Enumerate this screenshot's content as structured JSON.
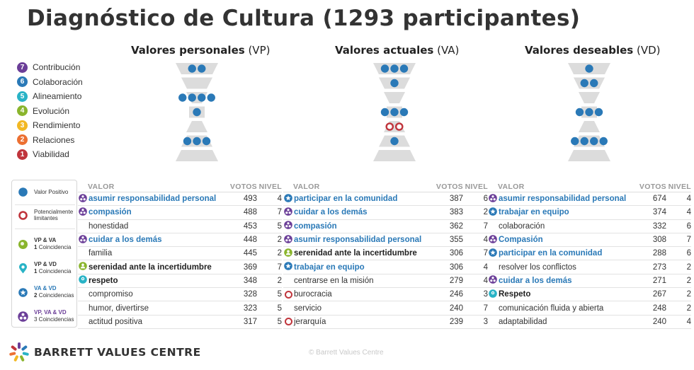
{
  "title": "Diagnóstico de Cultura (1293 participantes)",
  "hourglass_titles": [
    {
      "bold": "Valores personales",
      "abbr": "(VP)"
    },
    {
      "bold": "Valores actuales",
      "abbr": "(VA)"
    },
    {
      "bold": "Valores deseables",
      "abbr": "(VD)"
    }
  ],
  "levels": [
    {
      "num": "7",
      "label": "Contribución",
      "color": "#6b3e98"
    },
    {
      "num": "6",
      "label": "Colaboración",
      "color": "#2a79b7"
    },
    {
      "num": "5",
      "label": "Alineamiento",
      "color": "#29b3c6"
    },
    {
      "num": "4",
      "label": "Evolución",
      "color": "#8ab52d"
    },
    {
      "num": "3",
      "label": "Rendimiento",
      "color": "#f2b824"
    },
    {
      "num": "2",
      "label": "Relaciones",
      "color": "#ec7032"
    },
    {
      "num": "1",
      "label": "Viabilidad",
      "color": "#c0353c"
    }
  ],
  "key": {
    "positive": "Valor Positivo",
    "limiting": "Potencialmente limitantes",
    "vpva_title": "VP & VA",
    "vpva_sub_num": "1",
    "vpva_sub": "Coincidencia",
    "vpvd_title": "VP & VD",
    "vpvd_sub_num": "1",
    "vpvd_sub": "Coincidencia",
    "vavd_title": "VA & VD",
    "vavd_sub_num": "2",
    "vavd_sub": "Coincidencias",
    "all_title": "VP, VA & VD",
    "all_sub": "3 Coincidencias"
  },
  "table_headers": {
    "valor": "VALOR",
    "votos": "VOTOS",
    "nivel": "NIVEL"
  },
  "chart_data": {
    "type": "table",
    "hourglass": {
      "VP": {
        "7": {
          "pos": 2,
          "lim": 0
        },
        "6": {
          "pos": 0,
          "lim": 0
        },
        "5": {
          "pos": 4,
          "lim": 0
        },
        "4": {
          "pos": 1,
          "lim": 0
        },
        "3": {
          "pos": 0,
          "lim": 0
        },
        "2": {
          "pos": 3,
          "lim": 0
        },
        "1": {
          "pos": 0,
          "lim": 0
        }
      },
      "VA": {
        "7": {
          "pos": 3,
          "lim": 0
        },
        "6": {
          "pos": 1,
          "lim": 0
        },
        "5": {
          "pos": 0,
          "lim": 0
        },
        "4": {
          "pos": 3,
          "lim": 0
        },
        "3": {
          "pos": 0,
          "lim": 2
        },
        "2": {
          "pos": 1,
          "lim": 0
        },
        "1": {
          "pos": 0,
          "lim": 0
        }
      },
      "VD": {
        "7": {
          "pos": 1,
          "lim": 0
        },
        "6": {
          "pos": 2,
          "lim": 0
        },
        "5": {
          "pos": 0,
          "lim": 0
        },
        "4": {
          "pos": 3,
          "lim": 0
        },
        "3": {
          "pos": 0,
          "lim": 0
        },
        "2": {
          "pos": 4,
          "lim": 0
        },
        "1": {
          "pos": 0,
          "lim": 0
        }
      }
    },
    "tables": [
      {
        "id": "VP",
        "rows": [
          {
            "name": "asumir responsabilidad personal",
            "votes": "493",
            "level": "4",
            "match": "vpvava",
            "style": "blue"
          },
          {
            "name": "compasión",
            "votes": "488",
            "level": "7",
            "match": "vpvava",
            "style": "blue"
          },
          {
            "name": "honestidad",
            "votes": "453",
            "level": "5",
            "match": "",
            "style": "plain"
          },
          {
            "name": "cuidar a los demás",
            "votes": "448",
            "level": "2",
            "match": "vpvava",
            "style": "blue"
          },
          {
            "name": "familia",
            "votes": "445",
            "level": "2",
            "match": "",
            "style": "plain"
          },
          {
            "name": "serenidad ante la incertidumbre",
            "votes": "369",
            "level": "7",
            "match": "vpva",
            "style": "bold"
          },
          {
            "name": "respeto",
            "votes": "348",
            "level": "2",
            "match": "vpvd",
            "style": "bold"
          },
          {
            "name": "compromiso",
            "votes": "328",
            "level": "5",
            "match": "",
            "style": "plain"
          },
          {
            "name": "humor, divertirse",
            "votes": "323",
            "level": "5",
            "match": "",
            "style": "plain"
          },
          {
            "name": "actitud positiva",
            "votes": "317",
            "level": "5",
            "match": "",
            "style": "plain"
          }
        ]
      },
      {
        "id": "VA",
        "rows": [
          {
            "name": "participar en la comunidad",
            "votes": "387",
            "level": "6",
            "match": "vava",
            "style": "blue"
          },
          {
            "name": "cuidar a los demás",
            "votes": "383",
            "level": "2",
            "match": "vpvava",
            "style": "blue"
          },
          {
            "name": "compasión",
            "votes": "362",
            "level": "7",
            "match": "vpvava",
            "style": "blue"
          },
          {
            "name": "asumir responsabilidad personal",
            "votes": "355",
            "level": "4",
            "match": "vpvava",
            "style": "blue"
          },
          {
            "name": "serenidad ante la incertidumbre",
            "votes": "306",
            "level": "7",
            "match": "vpva",
            "style": "bold"
          },
          {
            "name": "trabajar en equipo",
            "votes": "306",
            "level": "4",
            "match": "vava",
            "style": "blue"
          },
          {
            "name": "centrarse en la misión",
            "votes": "279",
            "level": "4",
            "match": "",
            "style": "plain"
          },
          {
            "name": "burocracia",
            "votes": "246",
            "level": "3",
            "match": "lim",
            "style": "plain"
          },
          {
            "name": "servicio",
            "votes": "240",
            "level": "7",
            "match": "",
            "style": "plain"
          },
          {
            "name": "jerarquía",
            "votes": "239",
            "level": "3",
            "match": "lim",
            "style": "plain"
          }
        ]
      },
      {
        "id": "VD",
        "rows": [
          {
            "name": "asumir responsabilidad personal",
            "votes": "674",
            "level": "4",
            "match": "vpvava",
            "style": "blue"
          },
          {
            "name": "trabajar en equipo",
            "votes": "374",
            "level": "4",
            "match": "vava",
            "style": "blue"
          },
          {
            "name": "colaboración",
            "votes": "332",
            "level": "6",
            "match": "",
            "style": "plain"
          },
          {
            "name": "Compasión",
            "votes": "308",
            "level": "7",
            "match": "vpvava",
            "style": "blue"
          },
          {
            "name": "participar en la comunidad",
            "votes": "288",
            "level": "6",
            "match": "vava",
            "style": "blue"
          },
          {
            "name": "resolver los conflictos",
            "votes": "273",
            "level": "2",
            "match": "",
            "style": "plain"
          },
          {
            "name": "cuidar a los demás",
            "votes": "271",
            "level": "2",
            "match": "vpvava",
            "style": "blue"
          },
          {
            "name": "Respeto",
            "votes": "267",
            "level": "2",
            "match": "vpvd",
            "style": "bold"
          },
          {
            "name": "comunicación fluida y abierta",
            "votes": "248",
            "level": "2",
            "match": "",
            "style": "plain"
          },
          {
            "name": "adaptabilidad",
            "votes": "240",
            "level": "4",
            "match": "",
            "style": "plain"
          }
        ]
      }
    ]
  },
  "footer": {
    "brand": "BARRETT VALUES CENTRE",
    "copyright": "© Barrett Values Centre"
  },
  "colors": {
    "positive": "#2a79b7",
    "limiting": "#c0353c",
    "hourglass": "#dcdcdc"
  }
}
